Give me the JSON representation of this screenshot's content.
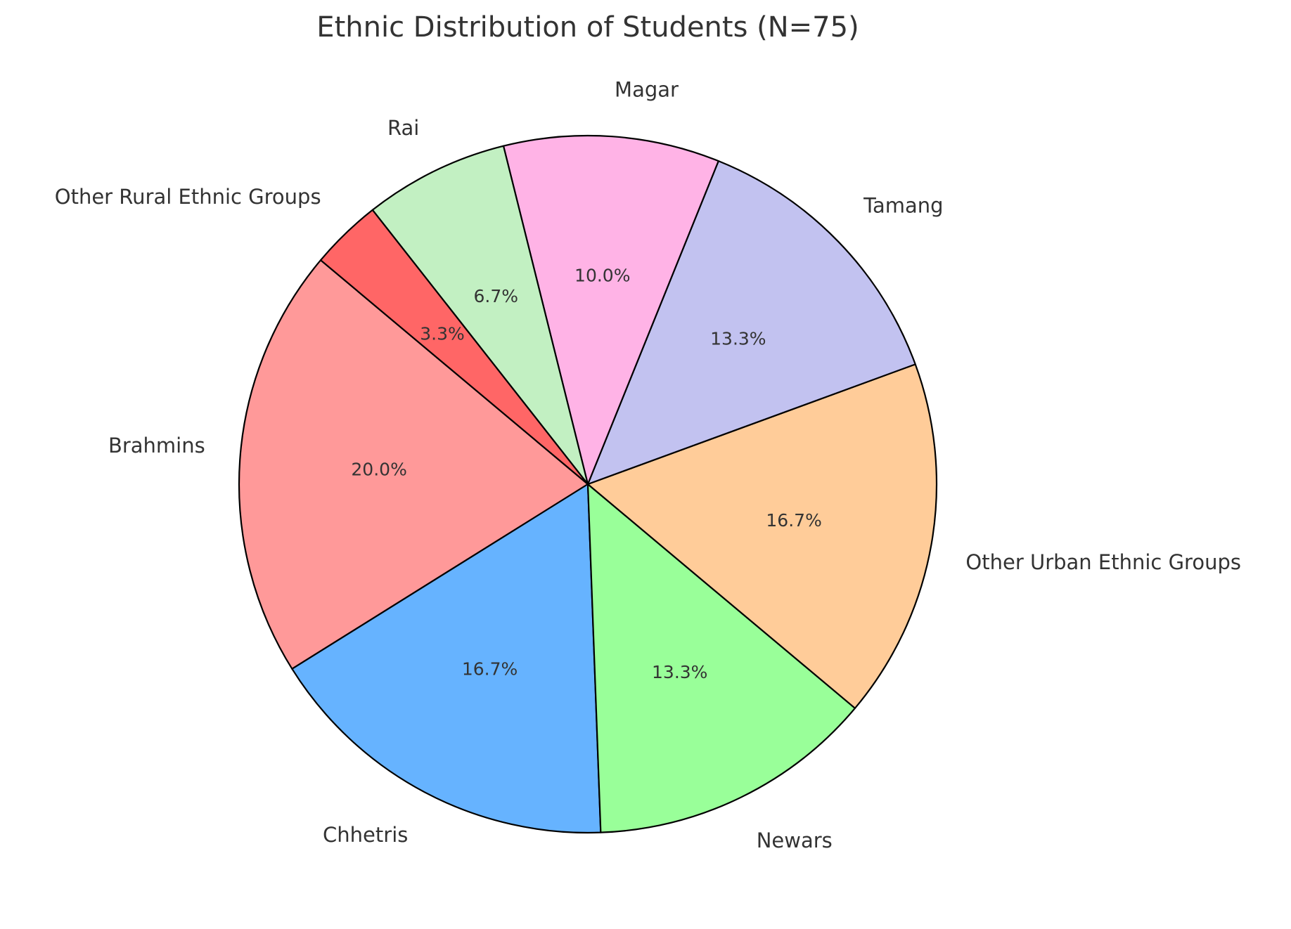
{
  "chart_data": {
    "type": "pie",
    "title": "Ethnic Distribution of Students (N=75)",
    "start_angle_deg": 140,
    "direction": "counterclockwise",
    "slices": [
      {
        "label": "Brahmins",
        "value": 20.0,
        "pct_label": "20.0%",
        "color": "#ff9999"
      },
      {
        "label": "Chhetris",
        "value": 16.7,
        "pct_label": "16.7%",
        "color": "#66b3ff"
      },
      {
        "label": "Newars",
        "value": 13.3,
        "pct_label": "13.3%",
        "color": "#99ff99"
      },
      {
        "label": "Other Urban Ethnic Groups",
        "value": 16.7,
        "pct_label": "16.7%",
        "color": "#ffcc99"
      },
      {
        "label": "Tamang",
        "value": 13.3,
        "pct_label": "13.3%",
        "color": "#c2c2f0"
      },
      {
        "label": "Magar",
        "value": 10.0,
        "pct_label": "10.0%",
        "color": "#ffb3e6"
      },
      {
        "label": "Rai",
        "value": 6.7,
        "pct_label": "6.7%",
        "color": "#c2f0c2"
      },
      {
        "label": "Other Rural Ethnic Groups",
        "value": 3.3,
        "pct_label": "3.3%",
        "color": "#ff6666"
      }
    ]
  }
}
